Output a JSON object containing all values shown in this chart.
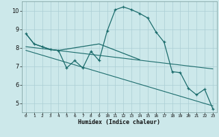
{
  "xlabel": "Humidex (Indice chaleur)",
  "bg_color": "#cce8ea",
  "grid_color": "#aacdd4",
  "line_color": "#1a6b6b",
  "xlim": [
    -0.5,
    23.5
  ],
  "ylim": [
    4.5,
    10.5
  ],
  "yticks": [
    5,
    6,
    7,
    8,
    9,
    10
  ],
  "xticks": [
    0,
    1,
    2,
    3,
    4,
    5,
    6,
    7,
    8,
    9,
    10,
    11,
    12,
    13,
    14,
    15,
    16,
    17,
    18,
    19,
    20,
    21,
    22,
    23
  ],
  "series1_x": [
    0,
    1,
    2,
    3,
    4,
    5,
    6,
    7,
    8,
    9,
    10,
    11,
    12,
    13,
    14,
    15,
    16,
    17,
    18,
    19,
    20,
    21,
    22,
    23
  ],
  "series1_y": [
    8.75,
    8.2,
    8.05,
    7.9,
    7.85,
    6.9,
    7.3,
    6.9,
    7.8,
    7.3,
    8.9,
    10.05,
    10.2,
    10.05,
    9.85,
    9.6,
    8.85,
    8.3,
    6.7,
    6.65,
    5.8,
    5.45,
    5.75,
    4.7
  ],
  "series2_x": [
    0,
    1,
    2,
    3,
    4,
    9,
    14
  ],
  "series2_y": [
    8.75,
    8.2,
    8.05,
    7.9,
    7.85,
    8.2,
    7.35
  ],
  "series3_x": [
    0,
    23
  ],
  "series3_y": [
    8.05,
    6.85
  ],
  "series4_x": [
    0,
    23
  ],
  "series4_y": [
    7.85,
    4.85
  ]
}
